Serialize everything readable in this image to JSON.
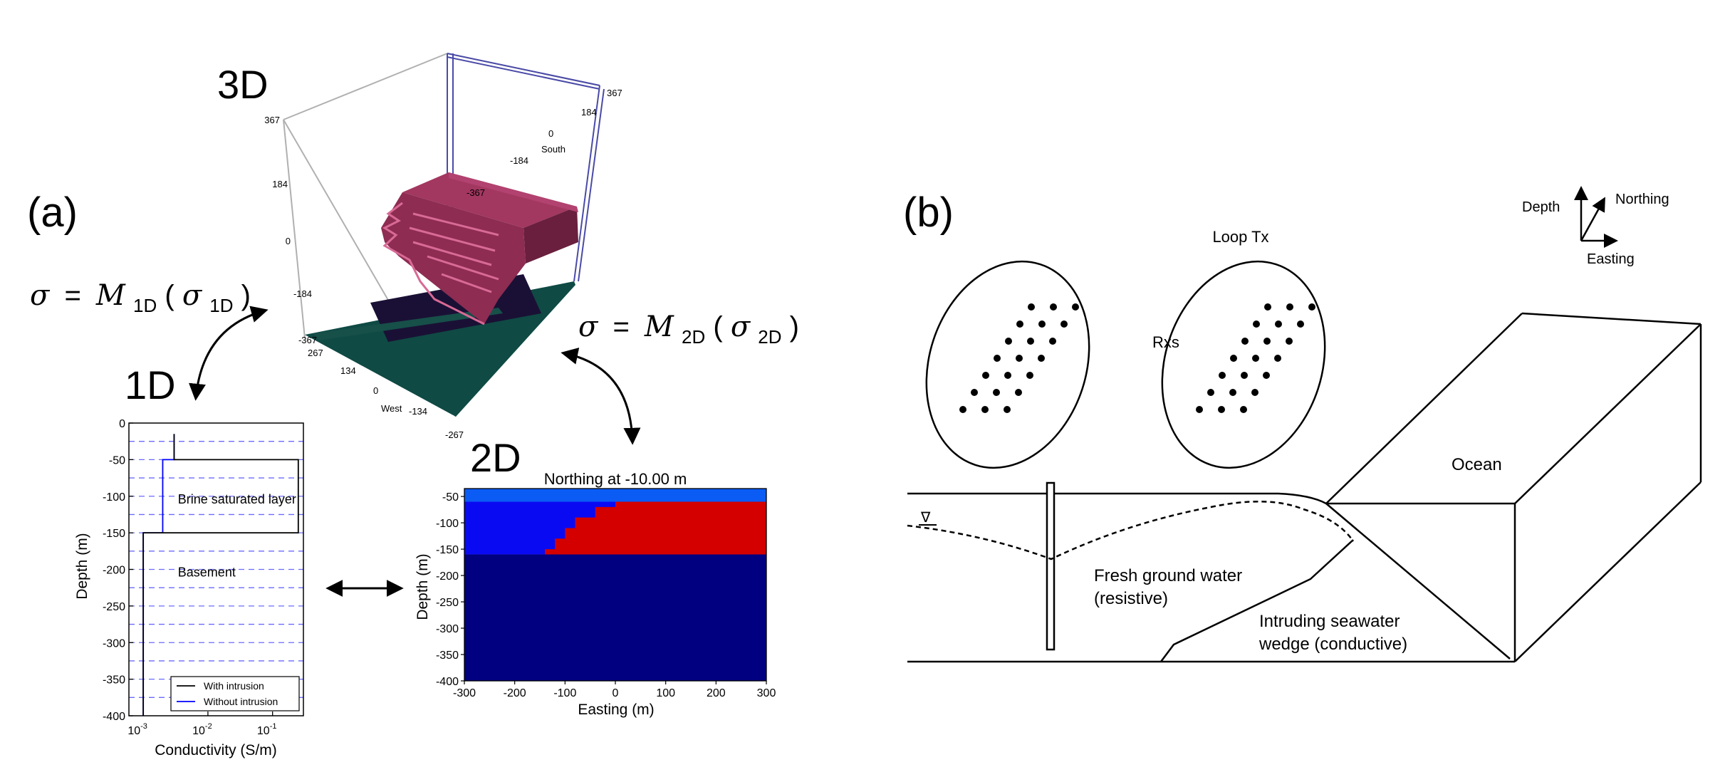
{
  "panel_a": {
    "label": "(a)",
    "view3d": {
      "label": "3D",
      "axis_z_ticks": [
        "367",
        "184",
        "0",
        "-184",
        "-367"
      ],
      "south_ticks": [
        "367",
        "184",
        "0",
        "-184",
        "-367"
      ],
      "south_label": "South",
      "west_ticks": [
        "267",
        "134",
        "0",
        "-134",
        "-267"
      ],
      "west_label": "West",
      "colors": {
        "intrusion": "#8e2c52",
        "layer_dark": "#1a1035",
        "base_teal": "#0f4a44"
      }
    },
    "formula_1d": "σ = M_{1D}(σ_{1D})",
    "formula_2d": "σ = M_{2D}(σ_{2D})",
    "f1_sigma": "σ",
    "f1_eq": "=",
    "f1_M": "M",
    "f1_sub": "1D",
    "f1_arg_sigma": "σ",
    "f1_arg_sub": "1D",
    "f2_sigma": "σ",
    "f2_eq": "=",
    "f2_M": "M",
    "f2_sub": "2D",
    "f2_arg_sigma": "σ",
    "f2_arg_sub": "2D",
    "view1d": {
      "label": "1D",
      "ylabel": "Depth (m)",
      "xlabel": "Conductivity (S/m)",
      "yticks": [
        "0",
        "-50",
        "-100",
        "-150",
        "-200",
        "-250",
        "-300",
        "-350",
        "-400"
      ],
      "xticks_base": [
        "10",
        "10",
        "10"
      ],
      "xticks_exp": [
        "-3",
        "-2",
        "-1"
      ],
      "annotations": [
        "Brine saturated layer",
        "Basement"
      ],
      "legend": [
        "With intrusion",
        "Without intrusion"
      ]
    },
    "view2d": {
      "label": "2D",
      "title": "Northing at -10.00 m",
      "xlabel": "Easting (m)",
      "ylabel": "Depth (m)",
      "xticks": [
        "-300",
        "-200",
        "-100",
        "0",
        "100",
        "200",
        "300"
      ],
      "yticks": [
        "-50",
        "-100",
        "-150",
        "-200",
        "-250",
        "-300",
        "-350",
        "-400"
      ],
      "colors": {
        "top": "#0a5cf5",
        "brine": "#0a0af2",
        "intrusion": "#d40000",
        "basement": "#000080"
      }
    }
  },
  "panel_b": {
    "label": "(b)",
    "loop_label": "Loop Tx",
    "rxs_label": "Rxs",
    "compass": [
      "Depth",
      "Northing",
      "Easting"
    ],
    "ocean_label": "Ocean",
    "fresh_label": [
      "Fresh ground water",
      "(resistive)"
    ],
    "wedge_label": [
      "Intruding seawater",
      "wedge (conductive)"
    ],
    "water_table_symbol": "∇"
  },
  "chart_data": [
    {
      "type": "line",
      "title": "",
      "xlabel": "Conductivity (S/m)",
      "ylabel": "Depth (m)",
      "xscale": "log",
      "xlim": [
        0.0006,
        0.3
      ],
      "ylim": [
        -400,
        0
      ],
      "grid": "horizontal dashed",
      "legend_position": "bottom-right",
      "series": [
        {
          "name": "With intrusion",
          "color": "#000000",
          "points": [
            [
              0.003,
              -15
            ],
            [
              0.003,
              -50
            ],
            [
              0.25,
              -50
            ],
            [
              0.25,
              -150
            ],
            [
              0.001,
              -150
            ],
            [
              0.001,
              -400
            ]
          ]
        },
        {
          "name": "Without intrusion",
          "color": "#0000ff",
          "points": [
            [
              0.003,
              -15
            ],
            [
              0.003,
              -50
            ],
            [
              0.002,
              -50
            ],
            [
              0.002,
              -150
            ],
            [
              0.001,
              -150
            ],
            [
              0.001,
              -400
            ]
          ]
        }
      ],
      "annotations": [
        {
          "text": "Brine saturated layer",
          "x": 0.004,
          "y": -100
        },
        {
          "text": "Basement",
          "x": 0.004,
          "y": -200
        }
      ]
    },
    {
      "type": "heatmap",
      "title": "Northing at -10.00 m",
      "xlabel": "Easting (m)",
      "ylabel": "Depth (m)",
      "xlim": [
        -300,
        300
      ],
      "ylim": [
        -400,
        -35
      ],
      "regions": [
        {
          "label": "top",
          "color": "#0a5cf5",
          "x": [
            -300,
            300
          ],
          "y": [
            -60,
            -35
          ]
        },
        {
          "label": "brine",
          "color": "#0a0af2",
          "x": [
            -300,
            300
          ],
          "y": [
            -160,
            -60
          ]
        },
        {
          "label": "basement",
          "color": "#000080",
          "x": [
            -300,
            300
          ],
          "y": [
            -400,
            -160
          ]
        }
      ],
      "intrusion_steps": [
        {
          "x0": 0,
          "y0": -70
        },
        {
          "x0": -40,
          "y0": -90
        },
        {
          "x0": -80,
          "y0": -110
        },
        {
          "x0": -100,
          "y0": -130
        },
        {
          "x0": -120,
          "y0": -150
        },
        {
          "x0": -140,
          "y0": -160
        }
      ],
      "intrusion_x_end": 300,
      "intrusion_color": "#d40000"
    }
  ]
}
